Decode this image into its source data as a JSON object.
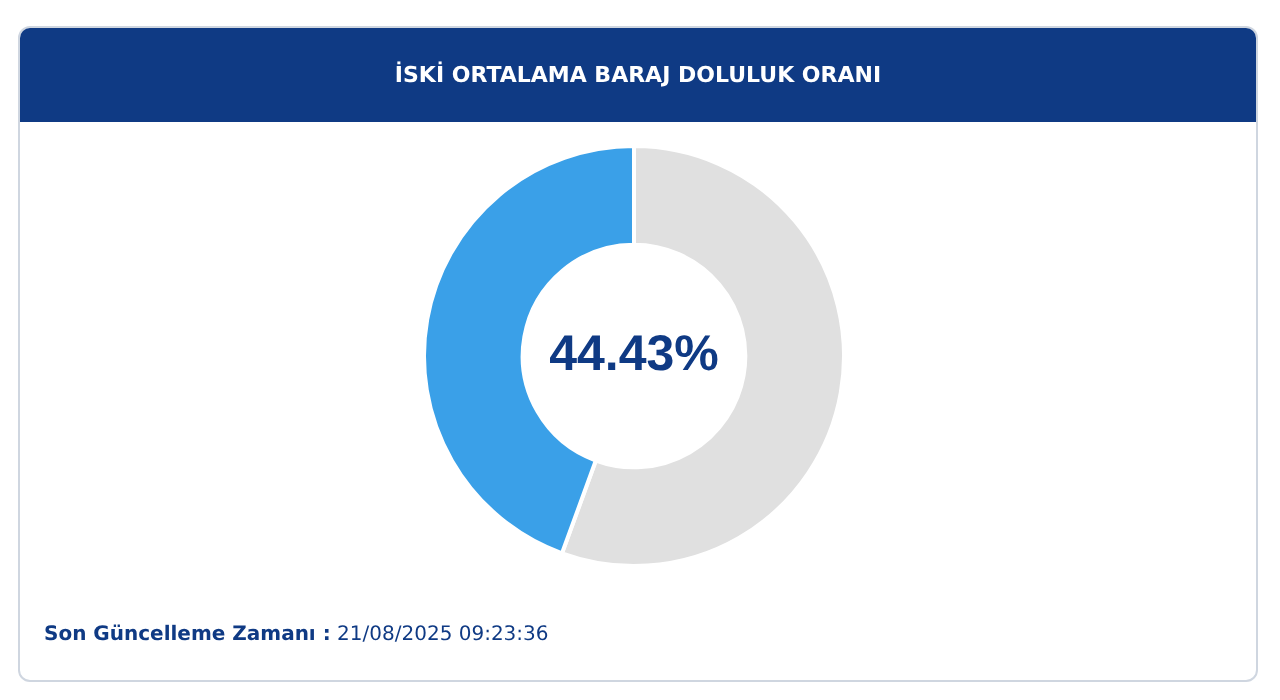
{
  "chart_data": {
    "type": "donut",
    "title": "İSKİ ORTALAMA BARAJ DOLULUK ORANI",
    "categories": [
      null,
      null
    ],
    "values": [
      55.57,
      44.43
    ],
    "colors": [
      "#e0e0e0",
      "#3aa0e8"
    ],
    "legend": false,
    "annotations": [
      "44.43%",
      "Son Güncelleme Zamanı : 21/08/2025 09:23:36"
    ]
  }
}
